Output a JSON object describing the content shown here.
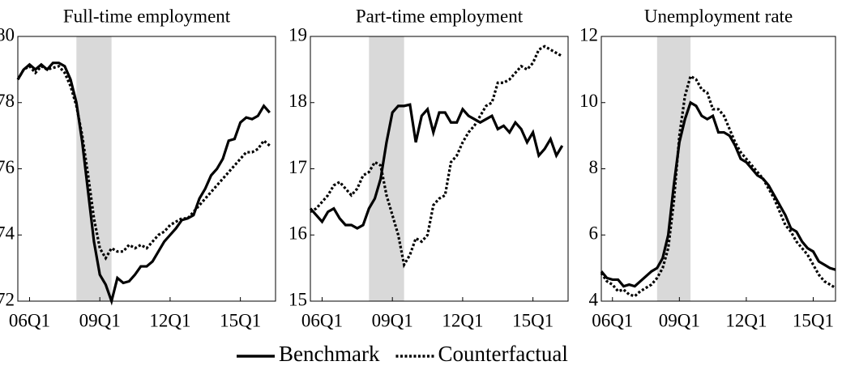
{
  "chart_data": [
    {
      "type": "line",
      "title": "Full-time employment",
      "x": [
        2005.5,
        2005.75,
        2006,
        2006.25,
        2006.5,
        2006.75,
        2007,
        2007.25,
        2007.5,
        2007.75,
        2008,
        2008.25,
        2008.5,
        2008.75,
        2009,
        2009.25,
        2009.5,
        2009.75,
        2010,
        2010.25,
        2010.5,
        2010.75,
        2011,
        2011.25,
        2011.5,
        2011.75,
        2012,
        2012.25,
        2012.5,
        2012.75,
        2013,
        2013.25,
        2013.5,
        2013.75,
        2014,
        2014.25,
        2014.5,
        2014.75,
        2015,
        2015.25,
        2015.5,
        2015.75,
        2016,
        2016.25
      ],
      "series": [
        {
          "name": "Benchmark",
          "color": "#000000",
          "line_style": "solid",
          "values": [
            78.7,
            79.0,
            79.15,
            79.0,
            79.15,
            79.0,
            79.2,
            79.2,
            79.1,
            78.7,
            78.0,
            76.8,
            75.3,
            73.8,
            72.8,
            72.5,
            72.0,
            72.7,
            72.55,
            72.6,
            72.8,
            73.05,
            73.05,
            73.2,
            73.5,
            73.8,
            74.0,
            74.2,
            74.45,
            74.5,
            74.6,
            75.1,
            75.4,
            75.8,
            76.0,
            76.3,
            76.85,
            76.9,
            77.4,
            77.55,
            77.5,
            77.6,
            77.9,
            77.7
          ]
        },
        {
          "name": "Counterfactual",
          "color": "#000000",
          "line_style": "dotted",
          "values": [
            78.7,
            79.0,
            79.1,
            78.9,
            79.1,
            79.0,
            79.05,
            79.1,
            78.9,
            78.5,
            77.9,
            77.0,
            75.8,
            74.5,
            73.6,
            73.3,
            73.6,
            73.5,
            73.5,
            73.7,
            73.6,
            73.7,
            73.6,
            73.8,
            74.0,
            74.1,
            74.3,
            74.4,
            74.5,
            74.5,
            74.7,
            74.9,
            75.1,
            75.3,
            75.5,
            75.7,
            75.9,
            76.1,
            76.3,
            76.5,
            76.5,
            76.6,
            76.85,
            76.7
          ]
        }
      ],
      "xlim": [
        2005.5,
        2016.5
      ],
      "xticks": [
        {
          "value": 2006,
          "label": "06Q1"
        },
        {
          "value": 2009,
          "label": "09Q1"
        },
        {
          "value": 2012,
          "label": "12Q1"
        },
        {
          "value": 2015,
          "label": "15Q1"
        }
      ],
      "ylim": [
        72,
        80
      ],
      "yticks": [
        72,
        74,
        76,
        78,
        80
      ],
      "shade": [
        2008,
        2009.5
      ],
      "shade_color": "#d9d9d9",
      "legend": "bottom"
    },
    {
      "type": "line",
      "title": "Part-time employment",
      "x": [
        2005.5,
        2005.75,
        2006,
        2006.25,
        2006.5,
        2006.75,
        2007,
        2007.25,
        2007.5,
        2007.75,
        2008,
        2008.25,
        2008.5,
        2008.75,
        2009,
        2009.25,
        2009.5,
        2009.75,
        2010,
        2010.25,
        2010.5,
        2010.75,
        2011,
        2011.25,
        2011.5,
        2011.75,
        2012,
        2012.25,
        2012.5,
        2012.75,
        2013,
        2013.25,
        2013.5,
        2013.75,
        2014,
        2014.25,
        2014.5,
        2014.75,
        2015,
        2015.25,
        2015.5,
        2015.75,
        2016,
        2016.25
      ],
      "series": [
        {
          "name": "Benchmark",
          "color": "#000000",
          "line_style": "solid",
          "values": [
            16.4,
            16.3,
            16.2,
            16.35,
            16.4,
            16.25,
            16.15,
            16.15,
            16.1,
            16.15,
            16.4,
            16.55,
            16.85,
            17.4,
            17.85,
            17.95,
            17.95,
            17.97,
            17.4,
            17.8,
            17.9,
            17.55,
            17.85,
            17.85,
            17.7,
            17.7,
            17.9,
            17.8,
            17.75,
            17.7,
            17.75,
            17.8,
            17.6,
            17.65,
            17.55,
            17.7,
            17.6,
            17.4,
            17.55,
            17.2,
            17.3,
            17.45,
            17.2,
            17.35
          ]
        },
        {
          "name": "Counterfactual",
          "color": "#000000",
          "line_style": "dotted",
          "values": [
            16.35,
            16.4,
            16.5,
            16.6,
            16.75,
            16.8,
            16.7,
            16.6,
            16.7,
            16.9,
            16.95,
            17.1,
            17.05,
            16.6,
            16.3,
            16.0,
            15.55,
            15.7,
            15.95,
            15.9,
            16.0,
            16.45,
            16.55,
            16.6,
            17.1,
            17.2,
            17.4,
            17.55,
            17.65,
            17.8,
            17.95,
            18.0,
            18.3,
            18.3,
            18.35,
            18.45,
            18.55,
            18.5,
            18.6,
            18.8,
            18.85,
            18.8,
            18.75,
            18.7
          ]
        }
      ],
      "xlim": [
        2005.5,
        2016.5
      ],
      "xticks": [
        {
          "value": 2006,
          "label": "06Q1"
        },
        {
          "value": 2009,
          "label": "09Q1"
        },
        {
          "value": 2012,
          "label": "12Q1"
        },
        {
          "value": 2015,
          "label": "15Q1"
        }
      ],
      "ylim": [
        15,
        19
      ],
      "yticks": [
        15,
        16,
        17,
        18,
        19
      ],
      "shade": [
        2008,
        2009.5
      ],
      "shade_color": "#d9d9d9"
    },
    {
      "type": "line",
      "title": "Unemployment rate",
      "x": [
        2005.5,
        2005.75,
        2006,
        2006.25,
        2006.5,
        2006.75,
        2007,
        2007.25,
        2007.5,
        2007.75,
        2008,
        2008.25,
        2008.5,
        2008.75,
        2009,
        2009.25,
        2009.5,
        2009.75,
        2010,
        2010.25,
        2010.5,
        2010.75,
        2011,
        2011.25,
        2011.5,
        2011.75,
        2012,
        2012.25,
        2012.5,
        2012.75,
        2013,
        2013.25,
        2013.5,
        2013.75,
        2014,
        2014.25,
        2014.5,
        2014.75,
        2015,
        2015.25,
        2015.5,
        2015.75,
        2016
      ],
      "series": [
        {
          "name": "Benchmark",
          "color": "#000000",
          "line_style": "solid",
          "values": [
            4.9,
            4.7,
            4.65,
            4.65,
            4.45,
            4.5,
            4.45,
            4.6,
            4.75,
            4.9,
            5.0,
            5.3,
            6.0,
            7.5,
            8.8,
            9.5,
            10.0,
            9.9,
            9.6,
            9.5,
            9.6,
            9.1,
            9.1,
            9.0,
            8.7,
            8.3,
            8.2,
            8.0,
            7.8,
            7.7,
            7.5,
            7.2,
            6.9,
            6.6,
            6.2,
            6.1,
            5.8,
            5.6,
            5.5,
            5.2,
            5.1,
            5.0,
            4.95
          ]
        },
        {
          "name": "Counterfactual",
          "color": "#000000",
          "line_style": "dotted",
          "values": [
            4.85,
            4.6,
            4.5,
            4.3,
            4.35,
            4.2,
            4.15,
            4.3,
            4.4,
            4.5,
            4.7,
            5.0,
            5.6,
            7.0,
            9.0,
            10.2,
            10.8,
            10.7,
            10.4,
            10.3,
            9.8,
            9.8,
            9.6,
            9.2,
            8.8,
            8.5,
            8.3,
            8.1,
            7.9,
            7.7,
            7.4,
            7.1,
            6.7,
            6.3,
            6.1,
            5.8,
            5.6,
            5.4,
            5.1,
            4.8,
            4.6,
            4.5,
            4.4
          ]
        }
      ],
      "xlim": [
        2005.5,
        2016.0
      ],
      "xticks": [
        {
          "value": 2006,
          "label": "06Q1"
        },
        {
          "value": 2009,
          "label": "09Q1"
        },
        {
          "value": 2012,
          "label": "12Q1"
        },
        {
          "value": 2015,
          "label": "15Q1"
        }
      ],
      "ylim": [
        4,
        12
      ],
      "yticks": [
        4,
        6,
        8,
        10,
        12
      ],
      "shade": [
        2008,
        2009.5
      ],
      "shade_color": "#d9d9d9"
    }
  ]
}
